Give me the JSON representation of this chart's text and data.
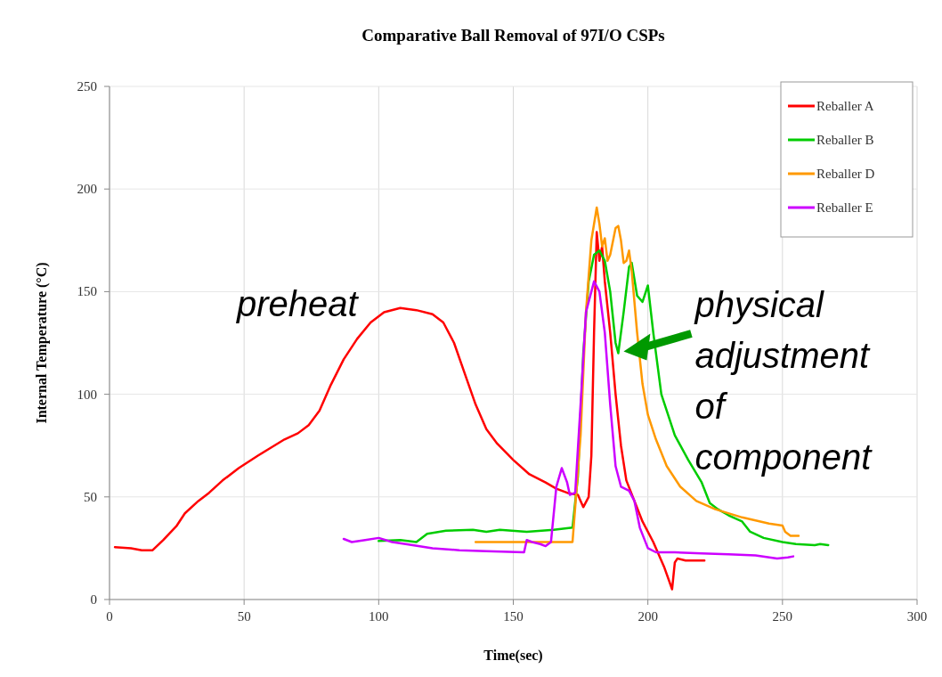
{
  "chart_data": {
    "type": "line",
    "title": "Comparative Ball Removal of 97I/O CSPs",
    "xlabel": "Time(sec)",
    "ylabel": "Internal Temperature (°C)",
    "xlim": [
      0,
      300
    ],
    "xticks": [
      0,
      50,
      100,
      150,
      200,
      250,
      300
    ],
    "ylim": [
      0,
      250
    ],
    "yticks": [
      0,
      50,
      100,
      150,
      200,
      250
    ],
    "grid": true,
    "legend": "top right",
    "line_style": "solid",
    "marker": "none",
    "annotations": [
      "preheat",
      {
        "text": "physical adjustment of component",
        "x": 189,
        "y": 120
      }
    ],
    "series": [
      {
        "name": "Reballer A",
        "color": "#ff0000",
        "x": [
          2,
          8,
          12,
          16,
          20,
          25,
          28,
          33,
          37,
          42,
          48,
          55,
          60,
          65,
          70,
          74,
          78,
          82,
          87,
          92,
          97,
          102,
          108,
          114,
          120,
          124,
          128,
          132,
          136,
          140,
          144,
          150,
          156,
          162,
          166,
          170,
          174,
          176,
          178,
          179,
          180,
          181,
          182,
          183,
          184,
          186,
          188,
          190,
          192,
          195,
          198,
          202,
          206,
          209,
          210,
          211,
          214,
          221
        ],
        "values": [
          25.5,
          25,
          24,
          24,
          29,
          36,
          42,
          48,
          52,
          58,
          64,
          70,
          74,
          78,
          81,
          85,
          92,
          104,
          117,
          127,
          135,
          140,
          142,
          141,
          139,
          135,
          125,
          110,
          95,
          83,
          76,
          68,
          61,
          57,
          54,
          52,
          51,
          45,
          50,
          70,
          130,
          179,
          165,
          172,
          155,
          130,
          100,
          75,
          58,
          48,
          38,
          28,
          16,
          5,
          18,
          20,
          19,
          19
        ]
      },
      {
        "name": "Reballer B",
        "color": "#00cc00",
        "x": [
          100,
          108,
          114,
          118,
          125,
          135,
          140,
          145,
          155,
          165,
          172,
          174,
          176,
          178,
          180,
          182,
          184,
          186,
          188,
          189,
          191,
          193,
          194,
          196,
          198,
          200,
          202,
          205,
          210,
          215,
          220,
          223,
          226,
          230,
          235,
          238,
          243,
          250,
          255,
          262,
          264,
          267
        ],
        "values": [
          28.5,
          29,
          28,
          32,
          33.5,
          34,
          33,
          34,
          33,
          34,
          35,
          60,
          120,
          155,
          168,
          170,
          165,
          150,
          125,
          120,
          140,
          162,
          164,
          148,
          145,
          153,
          130,
          100,
          80,
          68,
          57,
          47,
          44,
          41,
          38,
          33,
          30,
          28,
          27,
          26.5,
          27,
          26.5
        ]
      },
      {
        "name": "Reballer D",
        "color": "#ff9900",
        "x": [
          136,
          150,
          172,
          173,
          175,
          177,
          179,
          181,
          182,
          183,
          184,
          185,
          186,
          188,
          189,
          190,
          191,
          192,
          193,
          194,
          196,
          198,
          200,
          203,
          207,
          212,
          218,
          225,
          235,
          245,
          250,
          251,
          253,
          256
        ],
        "values": [
          28,
          28,
          28,
          45,
          80,
          140,
          175,
          191,
          183,
          172,
          176,
          165,
          168,
          181,
          182,
          175,
          164,
          165,
          170,
          160,
          130,
          105,
          90,
          78,
          65,
          55,
          48,
          44,
          40,
          37,
          36,
          33,
          31,
          31
        ]
      },
      {
        "name": "Reballer E",
        "color": "#cc00ff",
        "x": [
          87,
          90,
          95,
          100,
          105,
          110,
          120,
          130,
          140,
          154,
          155,
          157,
          160,
          162,
          164,
          166,
          168,
          170,
          171,
          173,
          175,
          177,
          180,
          182,
          184,
          186,
          188,
          190,
          193,
          195,
          197,
          200,
          203,
          210,
          220,
          230,
          240,
          248,
          252,
          254
        ],
        "values": [
          29.5,
          28,
          29,
          30,
          28,
          27,
          25,
          24,
          23.5,
          23,
          29,
          28,
          27,
          26,
          28,
          55,
          64,
          57,
          51,
          52,
          95,
          140,
          155,
          150,
          130,
          95,
          65,
          55,
          53,
          48,
          35,
          25,
          23,
          23,
          22.5,
          22,
          21.5,
          20,
          20.5,
          21
        ]
      }
    ]
  }
}
